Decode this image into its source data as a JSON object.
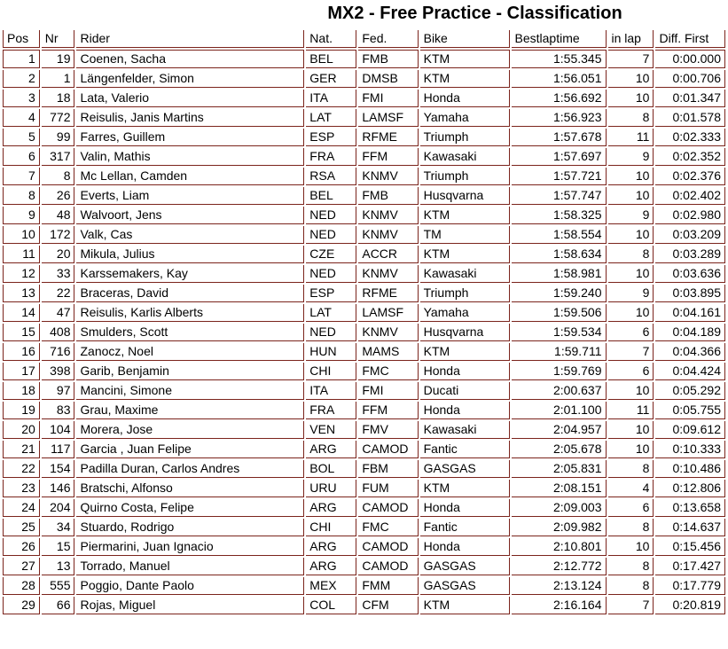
{
  "title": "MX2 - Free Practice - Classification",
  "colors": {
    "grid_border": "#7b241c",
    "text": "#000000",
    "background": "#ffffff"
  },
  "table": {
    "columns": [
      "Pos",
      "Nr",
      "Rider",
      "Nat.",
      "Fed.",
      "Bike",
      "Bestlaptime",
      "in lap",
      "Diff. First"
    ],
    "rows": [
      [
        "1",
        "19",
        "Coenen, Sacha",
        "BEL",
        "FMB",
        "KTM",
        "1:55.345",
        "7",
        "0:00.000"
      ],
      [
        "2",
        "1",
        "Längenfelder, Simon",
        "GER",
        "DMSB",
        "KTM",
        "1:56.051",
        "10",
        "0:00.706"
      ],
      [
        "3",
        "18",
        "Lata, Valerio",
        "ITA",
        "FMI",
        "Honda",
        "1:56.692",
        "10",
        "0:01.347"
      ],
      [
        "4",
        "772",
        "Reisulis, Janis Martins",
        "LAT",
        "LAMSF",
        "Yamaha",
        "1:56.923",
        "8",
        "0:01.578"
      ],
      [
        "5",
        "99",
        "Farres, Guillem",
        "ESP",
        "RFME",
        "Triumph",
        "1:57.678",
        "11",
        "0:02.333"
      ],
      [
        "6",
        "317",
        "Valin, Mathis",
        "FRA",
        "FFM",
        "Kawasaki",
        "1:57.697",
        "9",
        "0:02.352"
      ],
      [
        "7",
        "8",
        "Mc Lellan, Camden",
        "RSA",
        "KNMV",
        "Triumph",
        "1:57.721",
        "10",
        "0:02.376"
      ],
      [
        "8",
        "26",
        "Everts, Liam",
        "BEL",
        "FMB",
        "Husqvarna",
        "1:57.747",
        "10",
        "0:02.402"
      ],
      [
        "9",
        "48",
        "Walvoort, Jens",
        "NED",
        "KNMV",
        "KTM",
        "1:58.325",
        "9",
        "0:02.980"
      ],
      [
        "10",
        "172",
        "Valk, Cas",
        "NED",
        "KNMV",
        "TM",
        "1:58.554",
        "10",
        "0:03.209"
      ],
      [
        "11",
        "20",
        "Mikula, Julius",
        "CZE",
        "ACCR",
        "KTM",
        "1:58.634",
        "8",
        "0:03.289"
      ],
      [
        "12",
        "33",
        "Karssemakers, Kay",
        "NED",
        "KNMV",
        "Kawasaki",
        "1:58.981",
        "10",
        "0:03.636"
      ],
      [
        "13",
        "22",
        "Braceras, David",
        "ESP",
        "RFME",
        "Triumph",
        "1:59.240",
        "9",
        "0:03.895"
      ],
      [
        "14",
        "47",
        "Reisulis, Karlis Alberts",
        "LAT",
        "LAMSF",
        "Yamaha",
        "1:59.506",
        "10",
        "0:04.161"
      ],
      [
        "15",
        "408",
        "Smulders, Scott",
        "NED",
        "KNMV",
        "Husqvarna",
        "1:59.534",
        "6",
        "0:04.189"
      ],
      [
        "16",
        "716",
        "Zanocz, Noel",
        "HUN",
        "MAMS",
        "KTM",
        "1:59.711",
        "7",
        "0:04.366"
      ],
      [
        "17",
        "398",
        "Garib, Benjamin",
        "CHI",
        "FMC",
        "Honda",
        "1:59.769",
        "6",
        "0:04.424"
      ],
      [
        "18",
        "97",
        "Mancini, Simone",
        "ITA",
        "FMI",
        "Ducati",
        "2:00.637",
        "10",
        "0:05.292"
      ],
      [
        "19",
        "83",
        "Grau, Maxime",
        "FRA",
        "FFM",
        "Honda",
        "2:01.100",
        "11",
        "0:05.755"
      ],
      [
        "20",
        "104",
        "Morera, Jose",
        "VEN",
        "FMV",
        "Kawasaki",
        "2:04.957",
        "10",
        "0:09.612"
      ],
      [
        "21",
        "117",
        "Garcia , Juan Felipe",
        "ARG",
        "CAMOD",
        "Fantic",
        "2:05.678",
        "10",
        "0:10.333"
      ],
      [
        "22",
        "154",
        "Padilla Duran, Carlos Andres",
        "BOL",
        "FBM",
        "GASGAS",
        "2:05.831",
        "8",
        "0:10.486"
      ],
      [
        "23",
        "146",
        "Bratschi, Alfonso",
        "URU",
        "FUM",
        "KTM",
        "2:08.151",
        "4",
        "0:12.806"
      ],
      [
        "24",
        "204",
        "Quirno Costa, Felipe",
        "ARG",
        "CAMOD",
        "Honda",
        "2:09.003",
        "6",
        "0:13.658"
      ],
      [
        "25",
        "34",
        "Stuardo, Rodrigo",
        "CHI",
        "FMC",
        "Fantic",
        "2:09.982",
        "8",
        "0:14.637"
      ],
      [
        "26",
        "15",
        "Piermarini, Juan Ignacio",
        "ARG",
        "CAMOD",
        "Honda",
        "2:10.801",
        "10",
        "0:15.456"
      ],
      [
        "27",
        "13",
        "Torrado, Manuel",
        "ARG",
        "CAMOD",
        "GASGAS",
        "2:12.772",
        "8",
        "0:17.427"
      ],
      [
        "28",
        "555",
        "Poggio, Dante Paolo",
        "MEX",
        "FMM",
        "GASGAS",
        "2:13.124",
        "8",
        "0:17.779"
      ],
      [
        "29",
        "66",
        "Rojas, Miguel",
        "COL",
        "CFM",
        "KTM",
        "2:16.164",
        "7",
        "0:20.819"
      ]
    ]
  }
}
